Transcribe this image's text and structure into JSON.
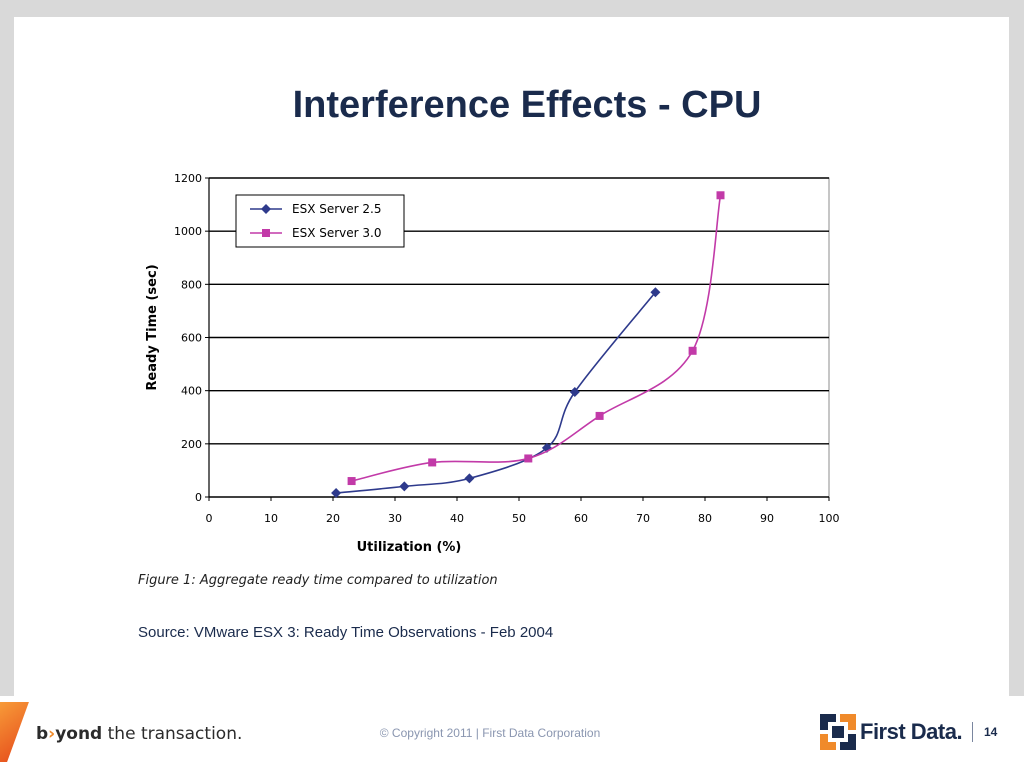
{
  "slide": {
    "title": "Interference Effects - CPU",
    "caption": "Figure 1: Aggregate ready time compared to utilization",
    "source": "Source:  VMware ESX 3: Ready Time Observations  - Feb 2004",
    "copyright": "©  Copyright  2011 | First Data Corporation",
    "page_number": "14"
  },
  "footer": {
    "tagline_bold": "b",
    "tagline_chevron": "›",
    "tagline_rest1": "yond",
    "tagline_rest2": " the transaction.",
    "logo_text": "First Data.",
    "accent_color": "#f08a2a",
    "brand_color": "#1a2b4c"
  },
  "chart_data": {
    "type": "line",
    "title": "",
    "xlabel": "Utilization (%)",
    "ylabel": "Ready Time (sec)",
    "xlim": [
      0,
      100
    ],
    "ylim": [
      0,
      1200
    ],
    "xticks": [
      0,
      10,
      20,
      30,
      40,
      50,
      60,
      70,
      80,
      90,
      100
    ],
    "yticks": [
      0,
      200,
      400,
      600,
      800,
      1000,
      1200
    ],
    "grid": "horizontal",
    "legend_position": "top-left",
    "series": [
      {
        "name": "ESX Server 2.5",
        "color": "#2e3a8c",
        "marker": "diamond",
        "x": [
          20.5,
          31.5,
          42,
          54.5,
          59,
          72
        ],
        "y": [
          15,
          40,
          70,
          185,
          395,
          770
        ]
      },
      {
        "name": "ESX Server 3.0",
        "color": "#c23aa8",
        "marker": "square",
        "x": [
          23,
          36,
          51.5,
          63,
          78,
          82.5
        ],
        "y": [
          60,
          130,
          145,
          305,
          550,
          1135
        ]
      }
    ]
  }
}
